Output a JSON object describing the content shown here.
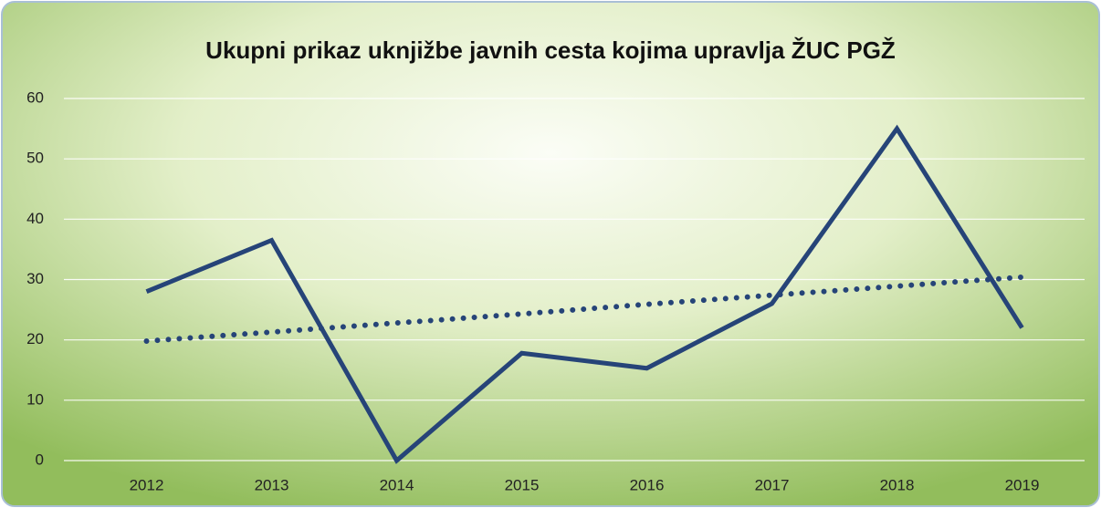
{
  "chart_data": {
    "type": "line",
    "title": "Ukupni prikaz uknjižbe javnih cesta kojima upravlja ŽUC PGŽ",
    "categories": [
      "2012",
      "2013",
      "2014",
      "2015",
      "2016",
      "2017",
      "2018",
      "2019"
    ],
    "series": [
      {
        "color": "#264478",
        "values": [
          28,
          36.5,
          0,
          17.8,
          15.3,
          26,
          55,
          22
        ]
      }
    ],
    "trendline": {
      "color": "#264478",
      "style": "dotted",
      "values": [
        19.8,
        21.3,
        22.8,
        24.3,
        25.9,
        27.4,
        28.9,
        30.4
      ]
    },
    "ylim": [
      0,
      60
    ],
    "yticks": [
      0,
      10,
      20,
      30,
      40,
      50,
      60
    ],
    "grid": true
  }
}
